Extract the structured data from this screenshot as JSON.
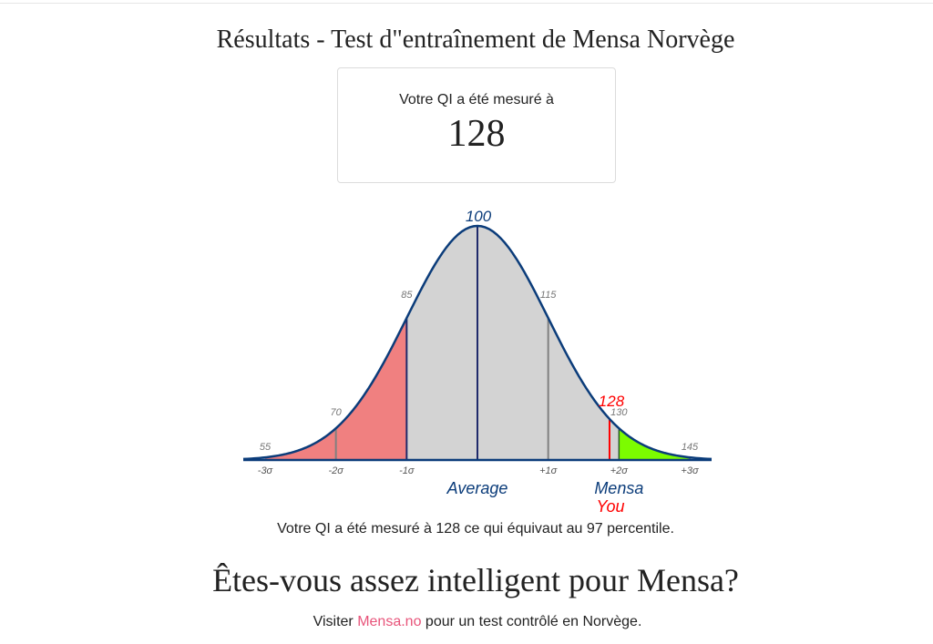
{
  "page": {
    "title": "Résultats - Test d\"entraînement de Mensa Norvège"
  },
  "result": {
    "label": "Votre QI a été mesuré à",
    "value": "128"
  },
  "chart_data": {
    "type": "area",
    "distribution": "normal",
    "mean": 100,
    "sd": 15,
    "x_range": [
      55,
      145
    ],
    "tick_labels_top": [
      "55",
      "70",
      "85",
      "100",
      "115",
      "130",
      "145"
    ],
    "tick_values": [
      55,
      70,
      85,
      100,
      115,
      130,
      145
    ],
    "sigma_labels": [
      "-3σ",
      "-2σ",
      "-1σ",
      "+1σ",
      "+2σ",
      "+3σ"
    ],
    "sigma_values": [
      55,
      70,
      85,
      115,
      130,
      145
    ],
    "annotations": {
      "average_label": "Average",
      "mensa_label": "Mensa",
      "you_label": "You"
    },
    "marker": {
      "value": 128,
      "label": "128"
    },
    "mensa_threshold": 130,
    "regions": [
      {
        "from": 55,
        "to": 85,
        "color": "#f08080"
      },
      {
        "from": 85,
        "to": 145,
        "color": "#d3d3d3"
      },
      {
        "from": 130,
        "to": 145,
        "color": "#7cfc00"
      }
    ],
    "colors": {
      "curve": "#0b3c7a",
      "marker": "#ff0000",
      "grey_line": "#808080",
      "tick_label": "#777777"
    }
  },
  "summary": {
    "percentile_text": "Votre QI a été mesuré à 128 ce qui équivaut au 97 percentile."
  },
  "cta": {
    "headline": "Êtes-vous assez intelligent pour Mensa?",
    "visit_prefix": "Visiter ",
    "link_text": "Mensa.no",
    "visit_suffix": " pour un test contrôlé en Norvège."
  }
}
